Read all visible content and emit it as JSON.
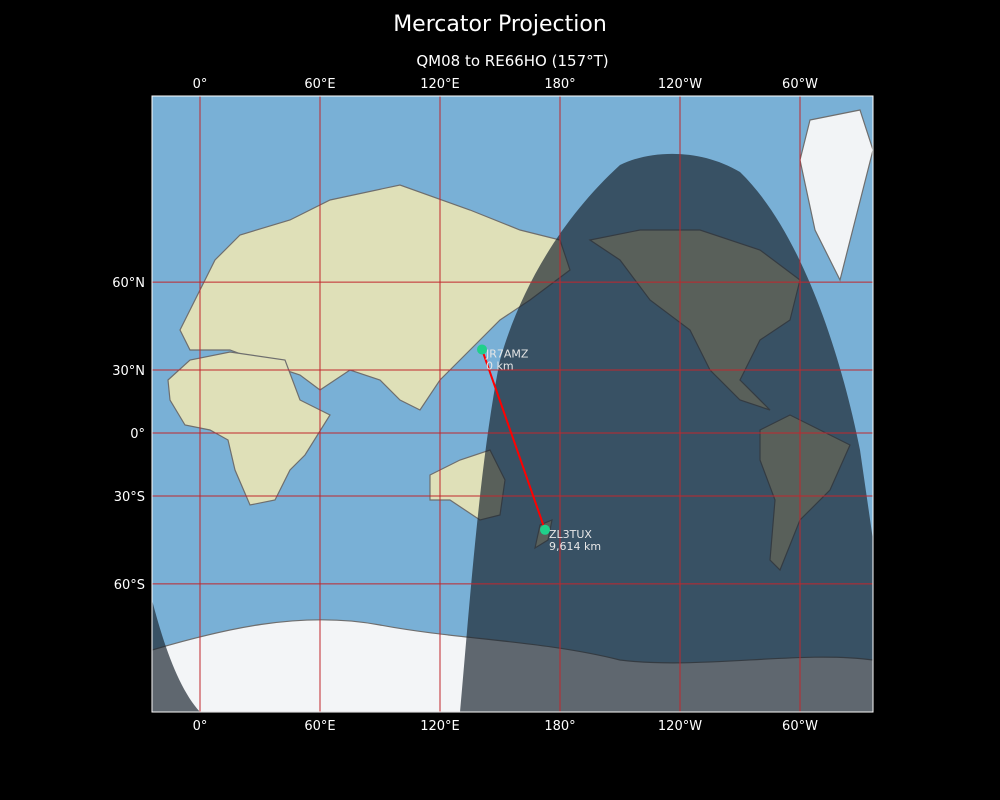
{
  "title": "Mercator Projection",
  "subtitle": "QM08 to RE66HO (157°T)",
  "map": {
    "projection": "Mercator",
    "lon_ticks": [
      "0°",
      "60°E",
      "120°E",
      "180°",
      "120°W",
      "60°W"
    ],
    "lat_ticks": [
      "60°N",
      "30°N",
      "0°",
      "30°S",
      "60°S"
    ],
    "gridline_color": "#c0272d",
    "path_color": "#ff0000",
    "marker_color": "#1fd08a",
    "night_shading": true,
    "stations": [
      {
        "call": "JR7AMZ",
        "distance": "0 km",
        "lat": 38.5,
        "lon": 141
      },
      {
        "call": "ZL3TUX",
        "distance": "9,614 km",
        "lat": -43.5,
        "lon": 172.5
      }
    ]
  }
}
